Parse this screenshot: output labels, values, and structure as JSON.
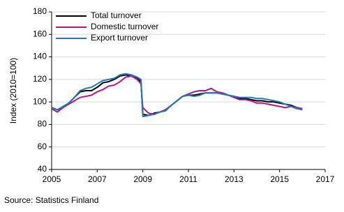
{
  "chart_data": {
    "type": "line",
    "y_label": "Index (2010=100)",
    "source": "Source: Statistics Finland",
    "x": [
      2005.0,
      2005.25,
      2005.5,
      2005.75,
      2006.0,
      2006.25,
      2006.5,
      2006.75,
      2007.0,
      2007.25,
      2007.5,
      2007.75,
      2008.0,
      2008.25,
      2008.5,
      2008.75,
      2008.92,
      2009.0,
      2009.25,
      2009.5,
      2009.75,
      2010.0,
      2010.25,
      2010.5,
      2010.75,
      2011.0,
      2011.25,
      2011.5,
      2011.75,
      2012.0,
      2012.25,
      2012.5,
      2012.75,
      2013.0,
      2013.25,
      2013.5,
      2013.75,
      2014.0,
      2014.25,
      2014.5,
      2014.75,
      2015.0,
      2015.25,
      2015.5,
      2015.75,
      2016.0
    ],
    "series": [
      {
        "name": "Total turnover",
        "color": "#000000",
        "values": [
          95,
          93,
          95,
          99,
          104,
          109,
          110,
          110,
          113,
          117,
          118,
          120,
          123,
          124,
          123,
          121,
          118,
          89,
          88,
          90,
          91,
          93,
          97,
          101,
          105,
          106,
          106,
          107,
          108,
          108,
          108,
          107,
          106,
          105,
          103,
          103,
          102,
          101,
          101,
          100,
          100,
          99,
          98,
          97,
          95,
          94
        ]
      },
      {
        "name": "Domestic turnover",
        "color": "#b5178a",
        "values": [
          94,
          91,
          95,
          98,
          101,
          104,
          105,
          106,
          109,
          111,
          114,
          115,
          118,
          122,
          123,
          120,
          116,
          95,
          90,
          89,
          91,
          93,
          97,
          101,
          105,
          107,
          109,
          110,
          110,
          112,
          109,
          108,
          106,
          104,
          102,
          102,
          101,
          99,
          99,
          98,
          97,
          96,
          95,
          96,
          95,
          94
        ]
      },
      {
        "name": "Export turnover",
        "color": "#2379b0",
        "values": [
          95,
          93,
          96,
          99,
          104,
          110,
          112,
          113,
          116,
          119,
          120,
          121,
          124,
          125,
          124,
          122,
          120,
          87,
          88,
          89,
          91,
          92,
          97,
          101,
          105,
          106,
          105,
          106,
          108,
          108,
          108,
          107,
          106,
          105,
          104,
          104,
          104,
          103,
          103,
          102,
          101,
          100,
          98,
          96,
          94,
          93
        ]
      }
    ],
    "xlim": [
      2005,
      2017
    ],
    "xticks": [
      2005,
      2007,
      2009,
      2011,
      2013,
      2015,
      2017
    ],
    "ylim": [
      40,
      180
    ],
    "yticks": [
      40,
      60,
      80,
      100,
      120,
      140,
      160,
      180
    ],
    "grid": true,
    "legend": "top-left"
  }
}
